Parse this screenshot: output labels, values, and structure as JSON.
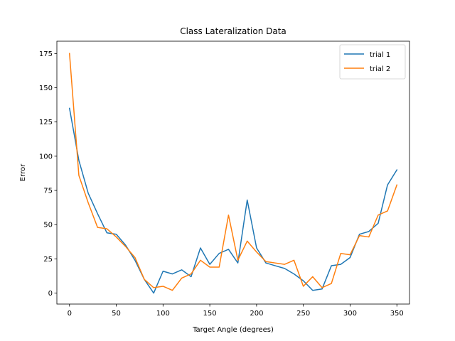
{
  "chart_data": {
    "type": "line",
    "title": "Class Lateralization Data",
    "xlabel": "Target Angle (degrees)",
    "ylabel": "Error",
    "xlim": [
      -13.5,
      363.5
    ],
    "ylim": [
      -8,
      184
    ],
    "xticks": [
      0,
      50,
      100,
      150,
      200,
      250,
      300,
      350
    ],
    "yticks": [
      0,
      25,
      50,
      75,
      100,
      125,
      150,
      175
    ],
    "grid": false,
    "legend_position": "top-right",
    "x": [
      0,
      10,
      20,
      30,
      40,
      50,
      60,
      70,
      80,
      90,
      100,
      110,
      120,
      130,
      140,
      150,
      160,
      170,
      180,
      190,
      200,
      210,
      220,
      230,
      240,
      250,
      260,
      270,
      280,
      290,
      300,
      310,
      320,
      330,
      340,
      350
    ],
    "series": [
      {
        "name": "trial 1",
        "color": "#1f77b4",
        "values": [
          135,
          97,
          73,
          58,
          44,
          43,
          35,
          24,
          10,
          0,
          16,
          14,
          17,
          12,
          33,
          21,
          29,
          32,
          22,
          68,
          33,
          22,
          20,
          18,
          14,
          9,
          2,
          3,
          20,
          21,
          26,
          43,
          45,
          51,
          79,
          90
        ]
      },
      {
        "name": "trial 2",
        "color": "#ff7f0e",
        "values": [
          175,
          86,
          66,
          48,
          47,
          41,
          34,
          26,
          10,
          4,
          5,
          2,
          11,
          14,
          24,
          19,
          19,
          57,
          24,
          38,
          30,
          23,
          22,
          21,
          24,
          5,
          12,
          4,
          7,
          29,
          28,
          42,
          41,
          57,
          60,
          79
        ]
      }
    ]
  }
}
